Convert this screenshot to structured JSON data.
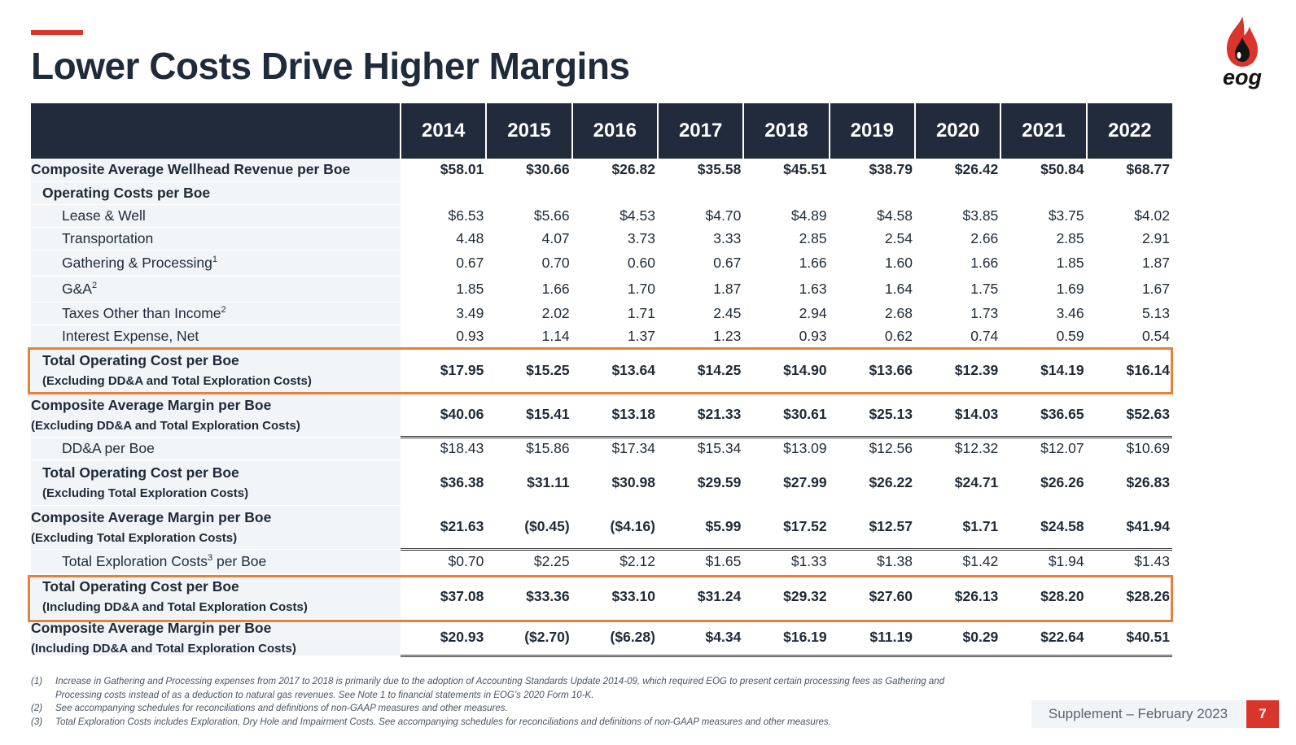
{
  "slide": {
    "title": "Lower Costs Drive Higher Margins",
    "logo_text": "eog",
    "supplement": "Supplement – February 2023",
    "page_number": "7",
    "accent_color": "#d9352a",
    "highlight_color": "#e9803a",
    "header_color": "#212b3c"
  },
  "table": {
    "years": [
      "2014",
      "2015",
      "2016",
      "2017",
      "2018",
      "2019",
      "2020",
      "2021",
      "2022"
    ],
    "rows": [
      {
        "label": "Composite Average Wellhead Revenue per Boe",
        "values": [
          "$58.01",
          "$30.66",
          "$26.82",
          "$35.58",
          "$45.51",
          "$38.79",
          "$26.42",
          "$50.84",
          "$68.77"
        ]
      },
      {
        "label": "Operating Costs per Boe",
        "values": []
      },
      {
        "label": "Lease & Well",
        "values": [
          "$6.53",
          "$5.66",
          "$4.53",
          "$4.70",
          "$4.89",
          "$4.58",
          "$3.85",
          "$3.75",
          "$4.02"
        ]
      },
      {
        "label": "Transportation",
        "values": [
          "4.48",
          "4.07",
          "3.73",
          "3.33",
          "2.85",
          "2.54",
          "2.66",
          "2.85",
          "2.91"
        ]
      },
      {
        "label": "Gathering & Processing",
        "sup": "1",
        "values": [
          "0.67",
          "0.70",
          "0.60",
          "0.67",
          "1.66",
          "1.60",
          "1.66",
          "1.85",
          "1.87"
        ]
      },
      {
        "label": "G&A",
        "sup": "2",
        "values": [
          "1.85",
          "1.66",
          "1.70",
          "1.87",
          "1.63",
          "1.64",
          "1.75",
          "1.69",
          "1.67"
        ]
      },
      {
        "label": "Taxes Other than Income",
        "sup": "2",
        "values": [
          "3.49",
          "2.02",
          "1.71",
          "2.45",
          "2.94",
          "2.68",
          "1.73",
          "3.46",
          "5.13"
        ]
      },
      {
        "label": "Interest Expense, Net",
        "values": [
          "0.93",
          "1.14",
          "1.37",
          "1.23",
          "0.93",
          "0.62",
          "0.74",
          "0.59",
          "0.54"
        ]
      },
      {
        "label": "Total Operating Cost per Boe",
        "sublabel": "(Excluding DD&A and Total Exploration Costs)",
        "values": [
          "$17.95",
          "$15.25",
          "$13.64",
          "$14.25",
          "$14.90",
          "$13.66",
          "$12.39",
          "$14.19",
          "$16.14"
        ]
      },
      {
        "label": "Composite Average Margin per Boe",
        "sublabel": "(Excluding DD&A and Total Exploration Costs)",
        "values": [
          "$40.06",
          "$15.41",
          "$13.18",
          "$21.33",
          "$30.61",
          "$25.13",
          "$14.03",
          "$36.65",
          "$52.63"
        ]
      },
      {
        "label": "DD&A per Boe",
        "values": [
          "$18.43",
          "$15.86",
          "$17.34",
          "$15.34",
          "$13.09",
          "$12.56",
          "$12.32",
          "$12.07",
          "$10.69"
        ]
      },
      {
        "label": "Total Operating Cost per Boe",
        "sublabel": "(Excluding Total Exploration Costs)",
        "values": [
          "$36.38",
          "$31.11",
          "$30.98",
          "$29.59",
          "$27.99",
          "$26.22",
          "$24.71",
          "$26.26",
          "$26.83"
        ]
      },
      {
        "label": "Composite Average Margin per Boe",
        "sublabel": "(Excluding Total Exploration Costs)",
        "values": [
          "$21.63",
          "($0.45)",
          "($4.16)",
          "$5.99",
          "$17.52",
          "$12.57",
          "$1.71",
          "$24.58",
          "$41.94"
        ]
      },
      {
        "label": "Total Exploration Costs",
        "sup": "3",
        "label_after": " per Boe",
        "values": [
          "$0.70",
          "$2.25",
          "$2.12",
          "$1.65",
          "$1.33",
          "$1.38",
          "$1.42",
          "$1.94",
          "$1.43"
        ]
      },
      {
        "label": "Total Operating Cost per Boe",
        "sublabel": "(Including DD&A and Total Exploration Costs)",
        "values": [
          "$37.08",
          "$33.36",
          "$33.10",
          "$31.24",
          "$29.32",
          "$27.60",
          "$26.13",
          "$28.20",
          "$28.26"
        ]
      },
      {
        "label": "Composite Average Margin per Boe",
        "sublabel": "(Including DD&A and Total Exploration Costs)",
        "values": [
          "$20.93",
          "($2.70)",
          "($6.28)",
          "$4.34",
          "$16.19",
          "$11.19",
          "$0.29",
          "$22.64",
          "$40.51"
        ]
      }
    ]
  },
  "footnotes": [
    {
      "num": "(1)",
      "text": "Increase in Gathering and Processing expenses from 2017 to 2018 is primarily due to the adoption of Accounting Standards Update 2014-09, which required EOG to present certain processing fees as Gathering and Processing costs instead of as a deduction to natural gas revenues.  See Note 1 to financial statements in EOG’s 2020 Form 10-K."
    },
    {
      "num": "(2)",
      "text": "See accompanying schedules for reconciliations and definitions of non-GAAP measures and other measures."
    },
    {
      "num": "(3)",
      "text": "Total Exploration Costs includes Exploration, Dry Hole and Impairment Costs. See accompanying schedules for reconciliations and definitions of non-GAAP measures and other measures."
    }
  ]
}
